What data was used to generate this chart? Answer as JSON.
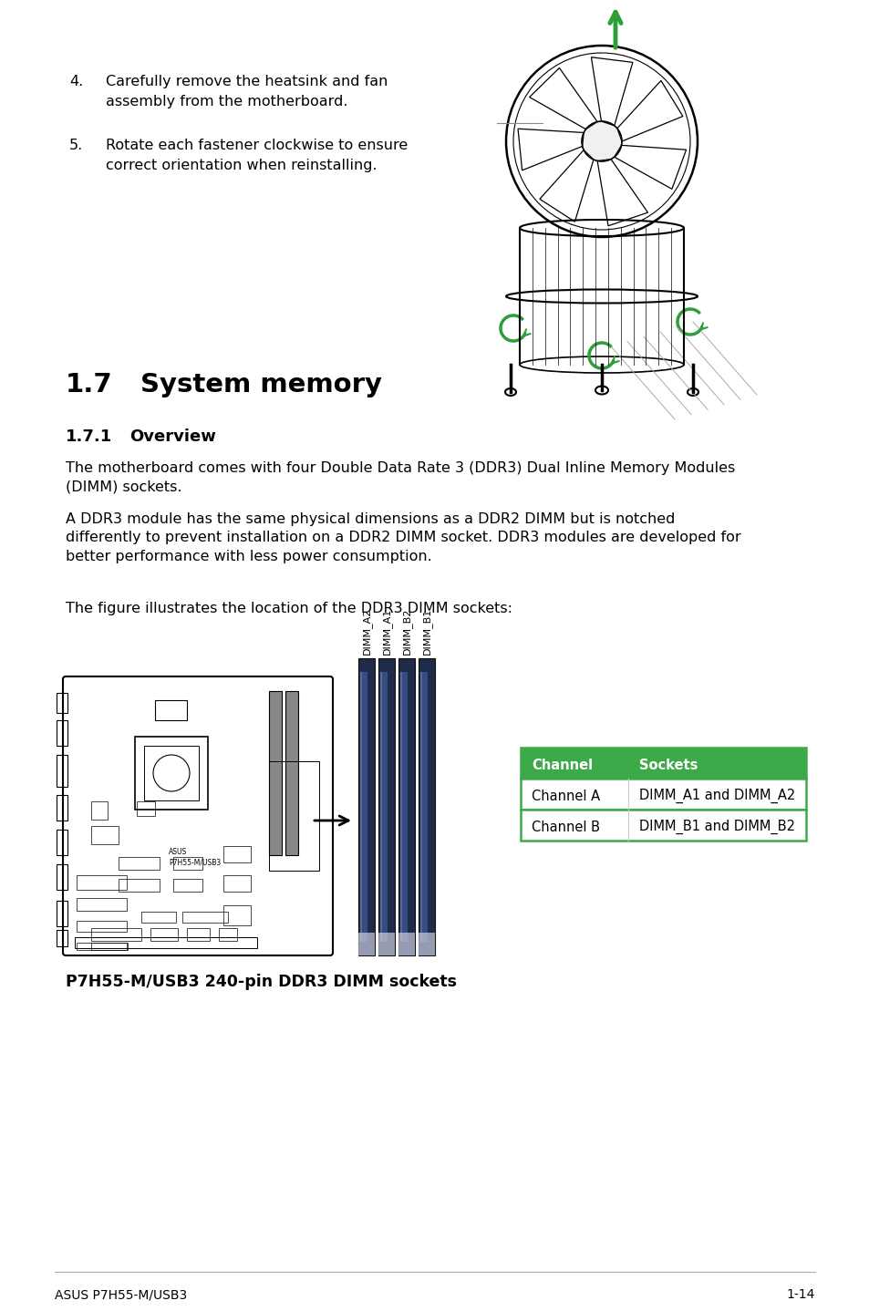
{
  "page_bg": "#ffffff",
  "section_title_num": "1.7",
  "section_title_text": "System memory",
  "subsection_title_num": "1.7.1",
  "subsection_title_text": "Overview",
  "para1": "The motherboard comes with four Double Data Rate 3 (DDR3) Dual Inline Memory Modules\n(DIMM) sockets.",
  "para2": "A DDR3 module has the same physical dimensions as a DDR2 DIMM but is notched\ndifferently to prevent installation on a DDR2 DIMM socket. DDR3 modules are developed for\nbetter performance with less power consumption.",
  "para3": "The figure illustrates the location of the DDR3 DIMM sockets:",
  "item4_num": "4.",
  "item4_text": "Carefully remove the heatsink and fan\nassembly from the motherboard.",
  "item5_num": "5.",
  "item5_text": "Rotate each fastener clockwise to ensure\ncorrect orientation when reinstalling.",
  "caption": "P7H55-M/USB3 240-pin DDR3 DIMM sockets",
  "table_header_bg": "#3daa4a",
  "table_header_color": "#ffffff",
  "table_border_color": "#3daa4a",
  "table_col1_header": "Channel",
  "table_col2_header": "Sockets",
  "table_rows": [
    [
      "Channel A",
      "DIMM_A1 and DIMM_A2"
    ],
    [
      "Channel B",
      "DIMM_B1 and DIMM_B2"
    ]
  ],
  "footer_left": "ASUS P7H55-M/USB3",
  "footer_right": "1-14",
  "dimm_labels": [
    "DIMM_A2",
    "DIMM_A1",
    "DIMM_B2",
    "DIMM_B1"
  ],
  "green_color": "#2e9e38"
}
